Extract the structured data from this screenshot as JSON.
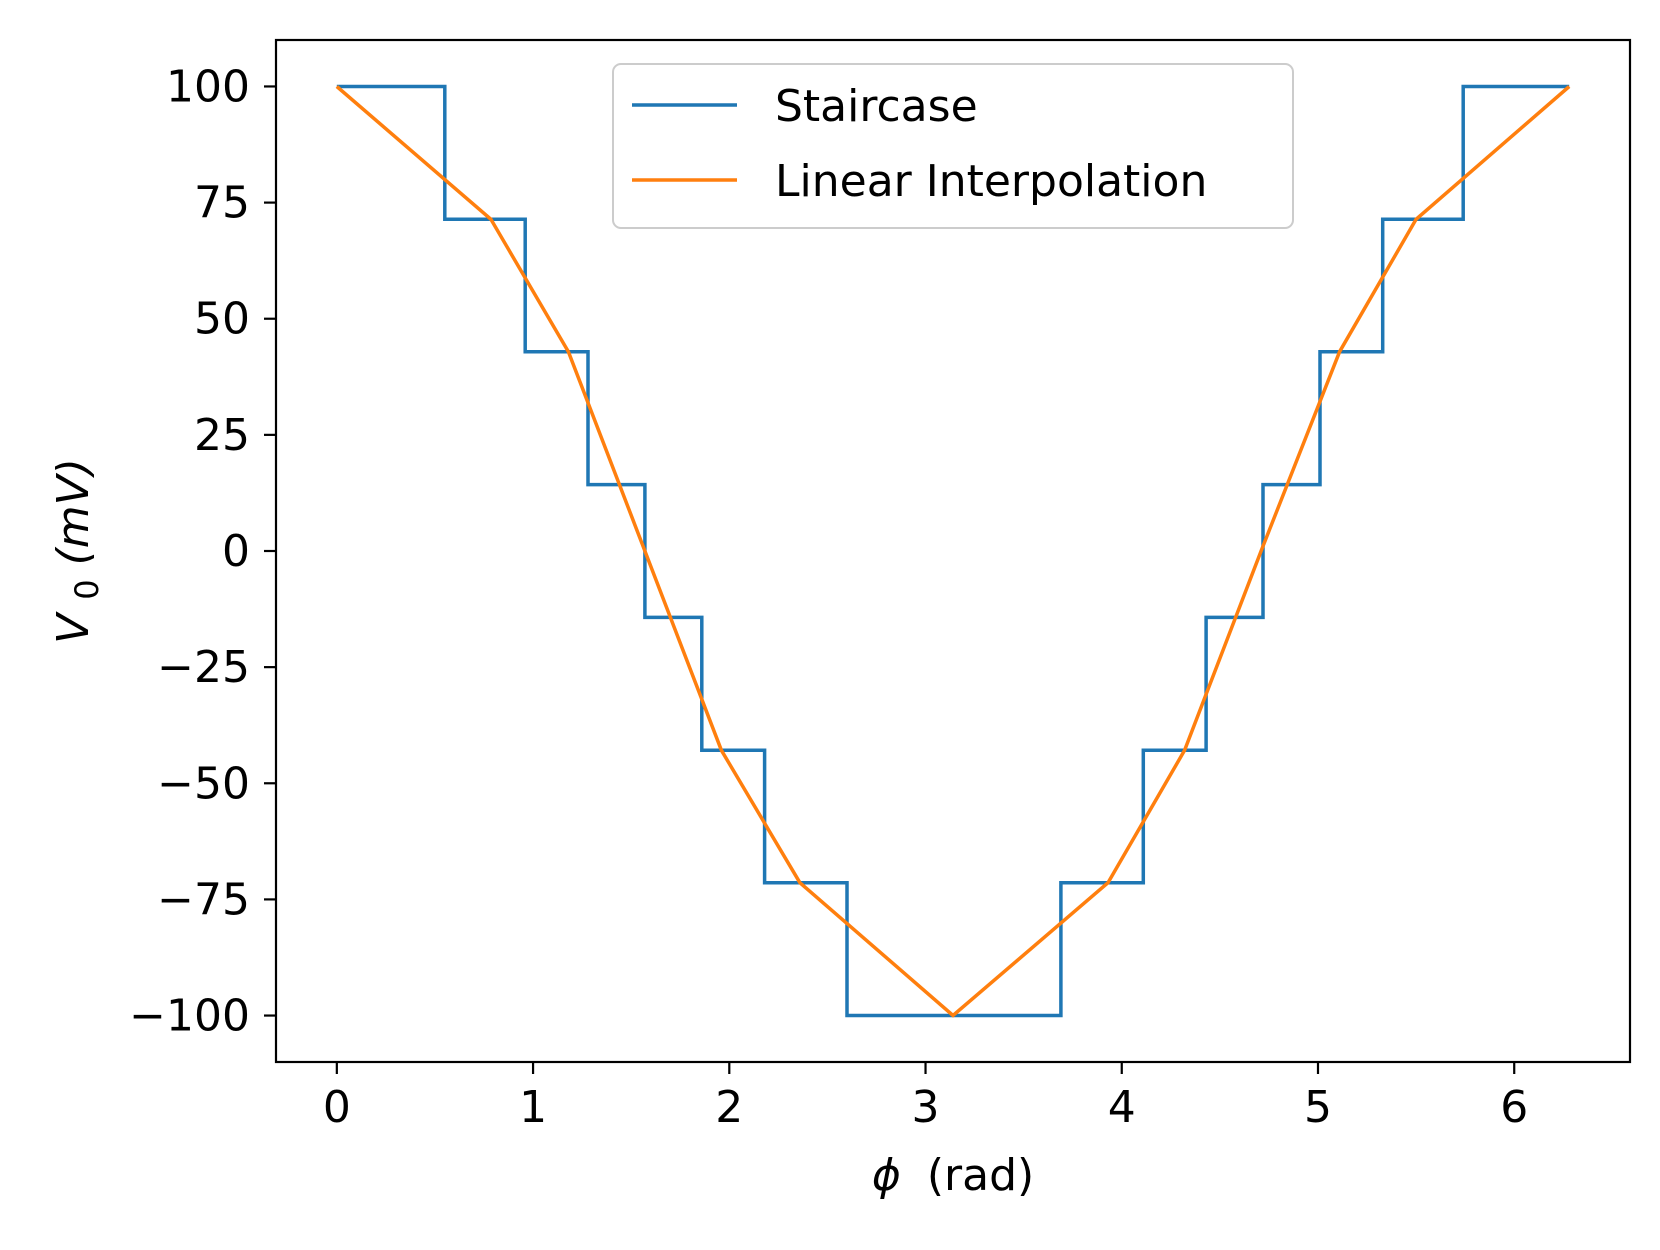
{
  "chart_data": {
    "type": "line",
    "xlabel_symbol": "ϕ",
    "xlabel_unit": "(rad)",
    "ylabel_main": "V",
    "ylabel_sub": "0",
    "ylabel_rest": "(mV)",
    "xlim": [
      -0.31,
      6.59
    ],
    "ylim": [
      -110,
      110
    ],
    "xticks": [
      0,
      1,
      2,
      3,
      4,
      5,
      6
    ],
    "xtick_labels": [
      "0",
      "1",
      "2",
      "3",
      "4",
      "5",
      "6"
    ],
    "yticks": [
      100,
      75,
      50,
      25,
      0,
      -25,
      -50,
      -75,
      -100
    ],
    "ytick_labels": [
      "100",
      "75",
      "50",
      "25",
      "0",
      "−25",
      "−50",
      "−75",
      "−100"
    ],
    "grid": false,
    "legend_position": "top-center",
    "series": [
      {
        "name": "Staircase",
        "color": "#1f77b4",
        "drawstyle": "step",
        "x": [
          0,
          0.55,
          0.55,
          0.96,
          0.96,
          1.28,
          1.28,
          1.57,
          1.57,
          1.86,
          1.86,
          2.18,
          2.18,
          2.6,
          2.6,
          3.69,
          3.69,
          4.11,
          4.11,
          4.43,
          4.43,
          4.72,
          4.72,
          5.01,
          5.01,
          5.33,
          5.33,
          5.74,
          5.74,
          6.28
        ],
        "y": [
          100,
          100,
          71.4,
          71.4,
          42.9,
          42.9,
          14.3,
          14.3,
          -14.3,
          -14.3,
          -42.9,
          -42.9,
          -71.4,
          -71.4,
          -100,
          -100,
          -71.4,
          -71.4,
          -42.9,
          -42.9,
          -14.3,
          -14.3,
          14.3,
          14.3,
          42.9,
          42.9,
          71.4,
          71.4,
          100,
          100
        ]
      },
      {
        "name": "Linear Interpolation",
        "color": "#ff7f0e",
        "drawstyle": "line",
        "x": [
          0,
          0.785,
          1.18,
          1.57,
          1.96,
          2.36,
          3.14,
          3.93,
          4.32,
          4.71,
          5.11,
          5.5,
          6.28
        ],
        "y": [
          100,
          71.4,
          42.9,
          0,
          -42.9,
          -71.4,
          -100,
          -71.4,
          -42.9,
          0,
          42.9,
          71.4,
          100
        ]
      }
    ]
  }
}
